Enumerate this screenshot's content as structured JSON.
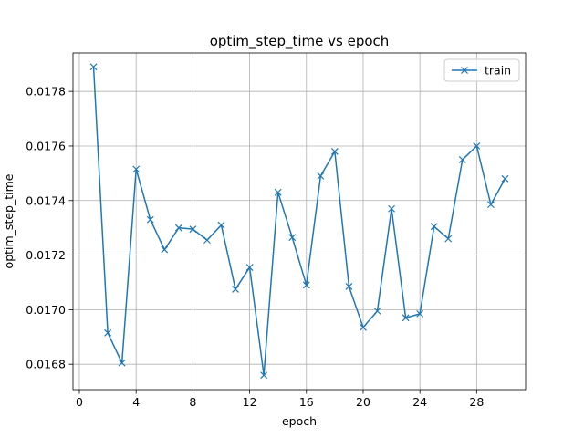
{
  "chart_data": {
    "type": "line",
    "title": "optim_step_time vs epoch",
    "xlabel": "epoch",
    "ylabel": "optim_step_time",
    "xlim": [
      -0.45,
      31.45
    ],
    "ylim": [
      0.016707,
      0.017941
    ],
    "xticks": [
      0,
      4,
      8,
      12,
      16,
      20,
      24,
      28
    ],
    "yticks": [
      0.0168,
      0.017,
      0.0172,
      0.0174,
      0.0176,
      0.0178
    ],
    "ytick_labels": [
      "0.0168",
      "0.0170",
      "0.0172",
      "0.0174",
      "0.0176",
      "0.0178"
    ],
    "grid": true,
    "legend": "top-right",
    "series": [
      {
        "name": "train",
        "color": "#1f77b4",
        "marker": "x",
        "x": [
          1,
          2,
          3,
          4,
          5,
          6,
          7,
          8,
          9,
          10,
          11,
          12,
          13,
          14,
          15,
          16,
          17,
          18,
          19,
          20,
          21,
          22,
          23,
          24,
          25,
          26,
          27,
          28,
          29,
          30
        ],
        "y": [
          0.01789,
          0.016915,
          0.016805,
          0.017515,
          0.01733,
          0.01722,
          0.0173,
          0.017295,
          0.017255,
          0.01731,
          0.017075,
          0.017155,
          0.01676,
          0.01743,
          0.017265,
          0.01709,
          0.01749,
          0.01758,
          0.017085,
          0.016935,
          0.016995,
          0.01737,
          0.01697,
          0.016985,
          0.017305,
          0.01726,
          0.01755,
          0.0176,
          0.017385,
          0.01748
        ]
      }
    ]
  }
}
